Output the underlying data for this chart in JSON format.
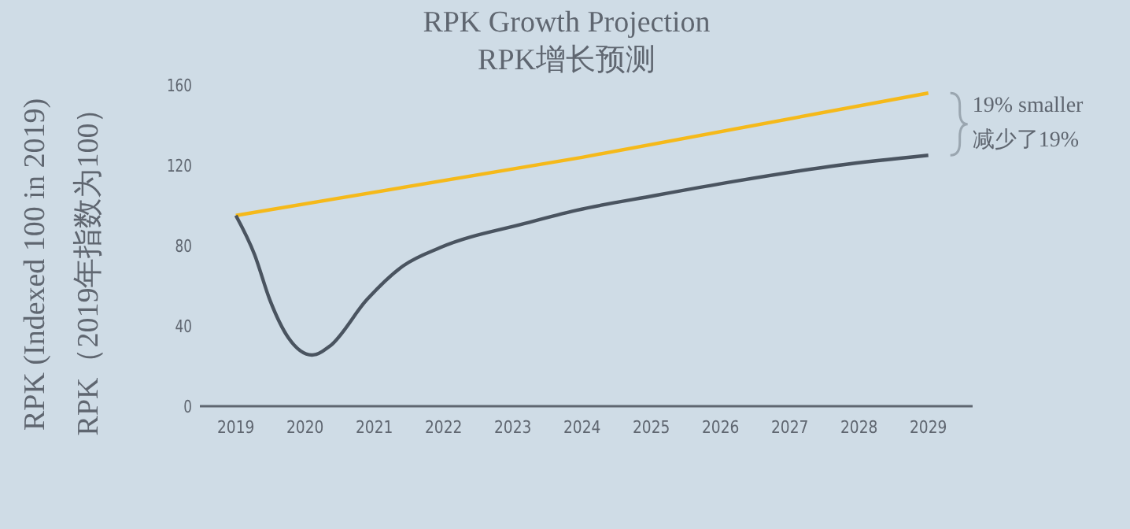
{
  "chart_data": {
    "type": "line",
    "title": "RPK Growth Projection",
    "subtitle": "RPK增长预测",
    "ylabel": "RPK (Indexed 100 in 2019)\nRPK（2019年指数为100）",
    "xlim": [
      2018.48,
      2029.64
    ],
    "xticks": [
      2019,
      2020,
      2021,
      2022,
      2023,
      2024,
      2025,
      2026,
      2027,
      2028,
      2029
    ],
    "ylim": [
      0,
      160
    ],
    "yticks": [
      0,
      40,
      80,
      120,
      160
    ],
    "grid": false,
    "series": [
      {
        "color": "#f5b91a",
        "x": [
          2019,
          2024,
          2029
        ],
        "values": [
          95,
          124,
          156
        ]
      },
      {
        "color": "#4a5460",
        "x": [
          2019,
          2019.27,
          2019.49,
          2019.76,
          2020.1,
          2020.36,
          2020.89,
          2021.42,
          2021.95,
          2023.17,
          2023.92,
          2025.06,
          2026.2,
          2027.7,
          2029
        ],
        "values": [
          95,
          75.5,
          53,
          34,
          25.5,
          30,
          53,
          70,
          79,
          91,
          97.6,
          105,
          112,
          120,
          125
        ]
      }
    ],
    "annotations": [
      "19% smaller\n减少了19%"
    ]
  }
}
